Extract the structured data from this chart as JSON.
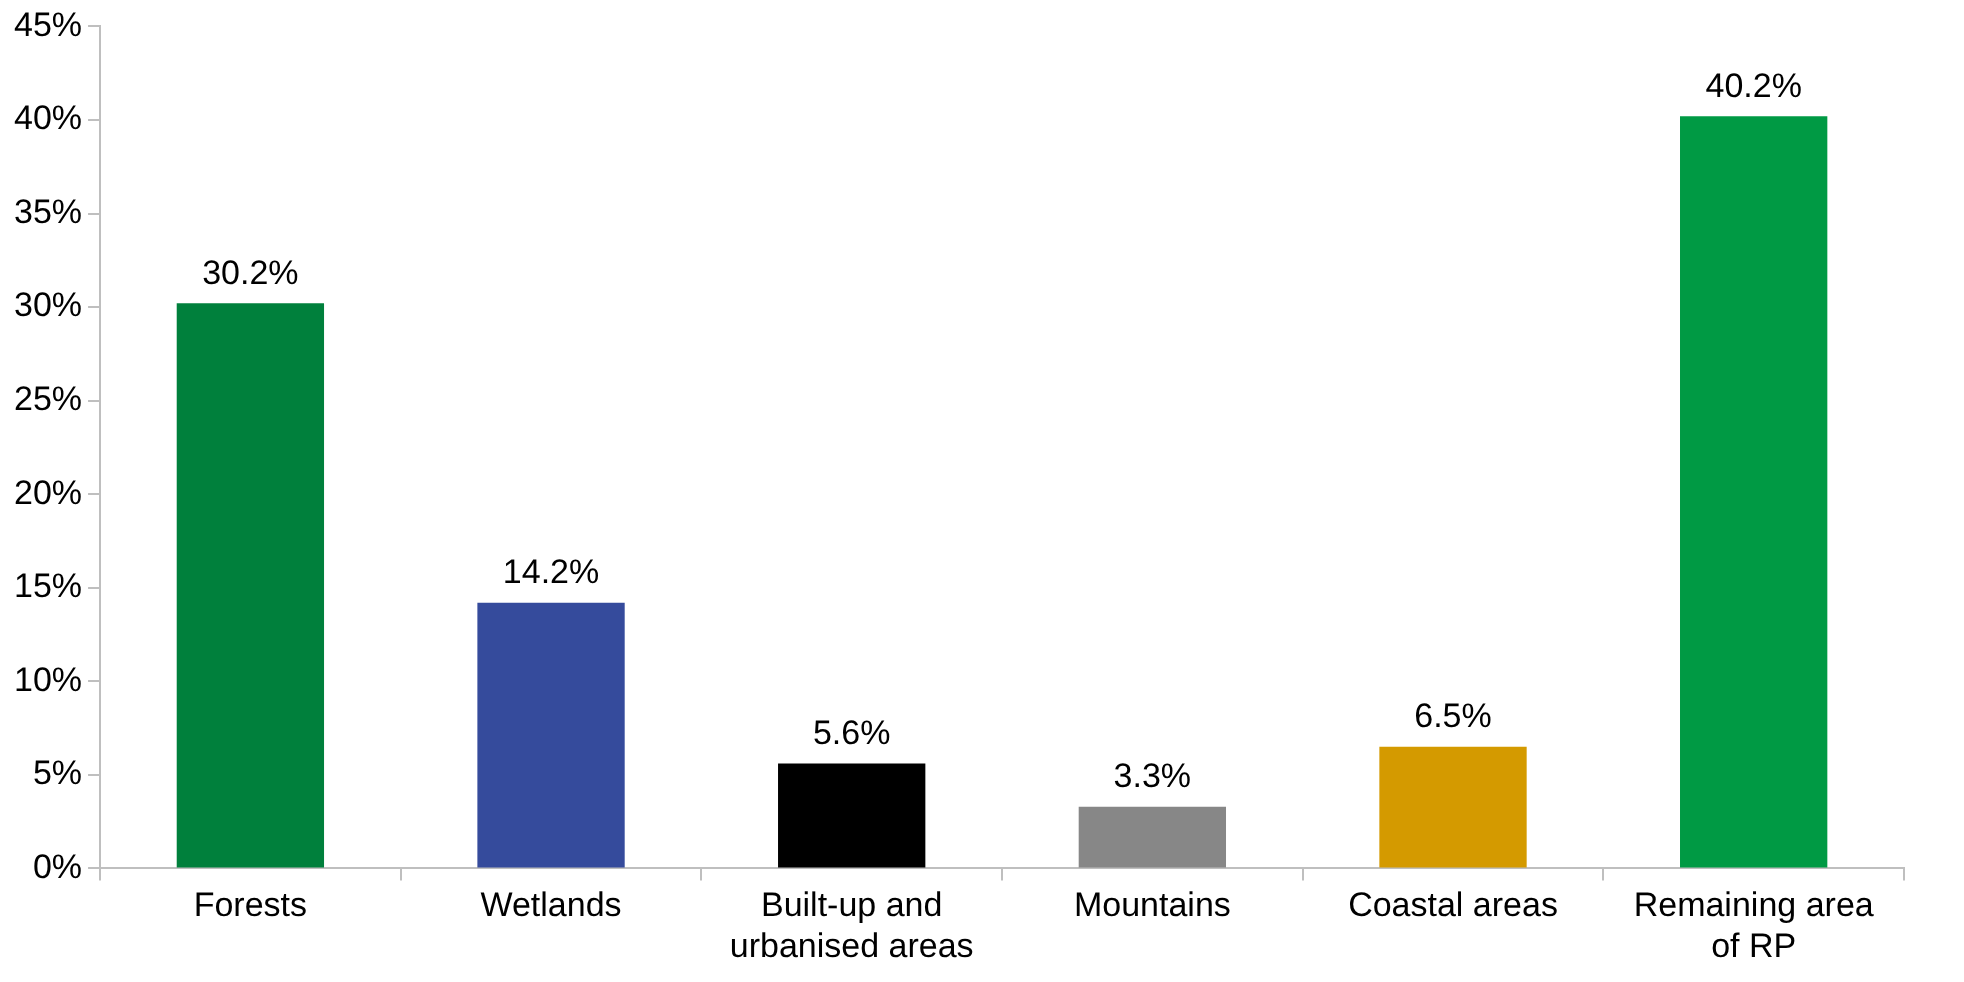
{
  "chart_data": {
    "type": "bar",
    "categories": [
      "Forests",
      "Wetlands",
      "Built-up and urbanised areas",
      "Mountains",
      "Coastal areas",
      "Remaining area of RP"
    ],
    "values": [
      30.2,
      14.2,
      5.6,
      3.3,
      6.5,
      40.2
    ],
    "colors": [
      "#00803c",
      "#354b9c",
      "#000000",
      "#878787",
      "#d49a00",
      "#009a44"
    ],
    "value_labels": [
      "30.2%",
      "14.2%",
      "5.6%",
      "3.3%",
      "6.5%",
      "40.2%"
    ],
    "ylim": [
      0,
      45
    ],
    "yticks": [
      {
        "value": 0,
        "label": "0%"
      },
      {
        "value": 5,
        "label": "5%"
      },
      {
        "value": 10,
        "label": "10%"
      },
      {
        "value": 15,
        "label": "15%"
      },
      {
        "value": 20,
        "label": "20%"
      },
      {
        "value": 25,
        "label": "25%"
      },
      {
        "value": 30,
        "label": "30%"
      },
      {
        "value": 35,
        "label": "35%"
      },
      {
        "value": 40,
        "label": "40%"
      },
      {
        "value": 45,
        "label": "45%"
      }
    ],
    "grid": false,
    "legend": false
  }
}
